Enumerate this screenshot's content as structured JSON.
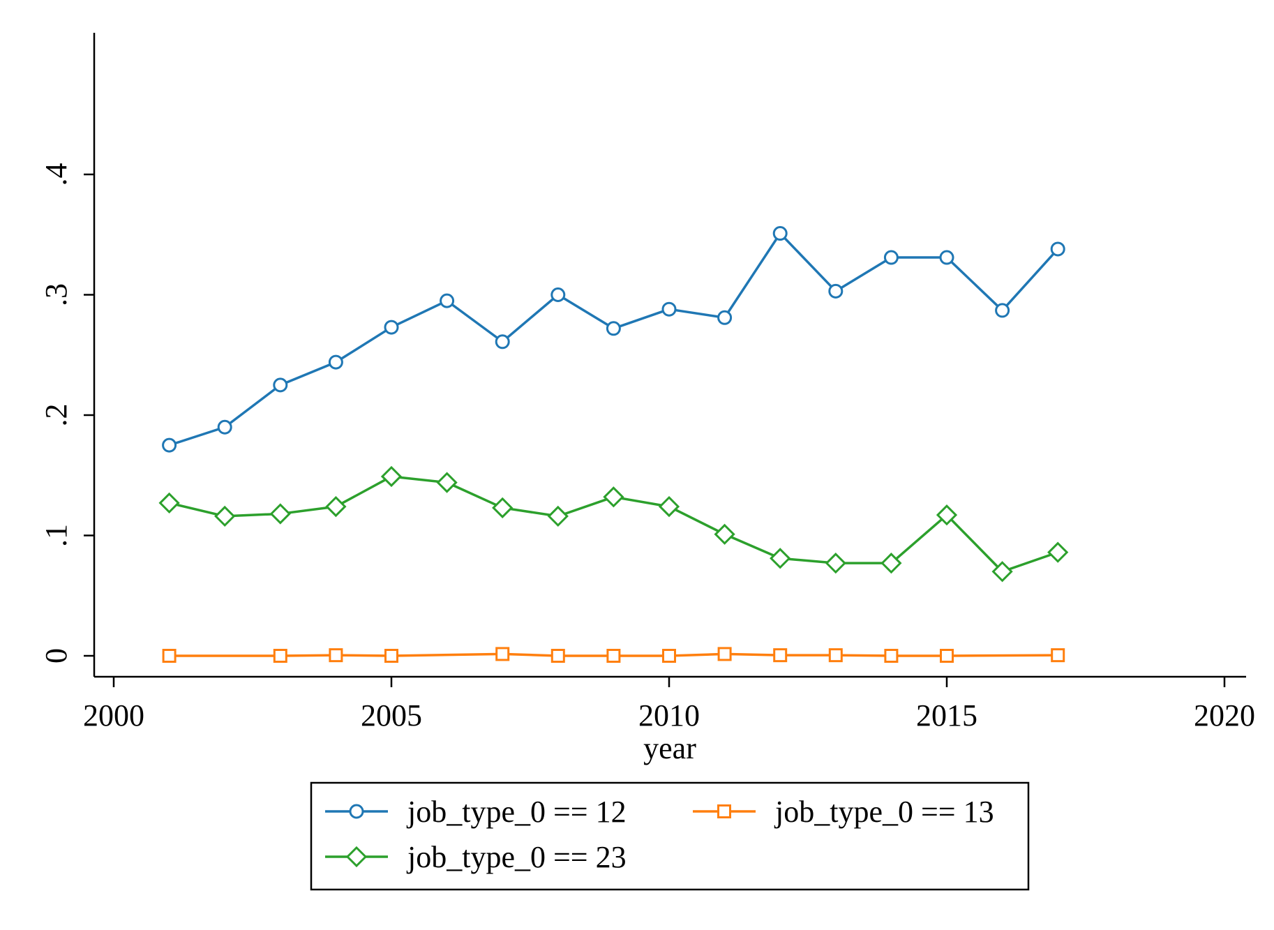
{
  "chart_data": {
    "type": "line",
    "title": "",
    "xlabel": "year",
    "ylabel": "",
    "xlim": [
      2000,
      2020
    ],
    "ylim": [
      0,
      0.5
    ],
    "x_ticks": [
      2000,
      2005,
      2010,
      2015,
      2020
    ],
    "x_tick_labels": [
      "2000",
      "2005",
      "2010",
      "2015",
      "2020"
    ],
    "y_ticks": [
      0,
      0.1,
      0.2,
      0.3,
      0.4
    ],
    "y_tick_labels": [
      "0",
      ".1",
      ".2",
      ".3",
      ".4"
    ],
    "grid": false,
    "legend_position": "bottom",
    "series": [
      {
        "name": "job_type_0 == 12",
        "color": "#1f77b4",
        "marker": "circle",
        "x": [
          2001,
          2002,
          2003,
          2004,
          2005,
          2006,
          2007,
          2008,
          2009,
          2010,
          2011,
          2012,
          2013,
          2014,
          2015,
          2016,
          2017
        ],
        "values": [
          0.175,
          0.19,
          0.225,
          0.244,
          0.273,
          0.295,
          0.261,
          0.3,
          0.272,
          0.288,
          0.281,
          0.351,
          0.303,
          0.331,
          0.331,
          0.287,
          0.338
        ]
      },
      {
        "name": "job_type_0 == 13",
        "color": "#ff7f0e",
        "marker": "square",
        "x": [
          2001,
          2003,
          2004,
          2005,
          2007,
          2008,
          2009,
          2010,
          2011,
          2012,
          2013,
          2014,
          2015,
          2017
        ],
        "values": [
          0.0,
          0.0,
          0.0005,
          0.0,
          0.0015,
          0.0,
          0.0,
          0.0,
          0.0015,
          0.0005,
          0.0005,
          0.0,
          0.0,
          0.0005
        ]
      },
      {
        "name": "job_type_0 == 23",
        "color": "#2ca02c",
        "marker": "diamond",
        "x": [
          2001,
          2002,
          2003,
          2004,
          2005,
          2006,
          2007,
          2008,
          2009,
          2010,
          2011,
          2012,
          2013,
          2014,
          2015,
          2016,
          2017
        ],
        "values": [
          0.127,
          0.116,
          0.118,
          0.124,
          0.149,
          0.144,
          0.123,
          0.116,
          0.132,
          0.124,
          0.101,
          0.081,
          0.077,
          0.077,
          0.117,
          0.07,
          0.086
        ]
      }
    ]
  }
}
